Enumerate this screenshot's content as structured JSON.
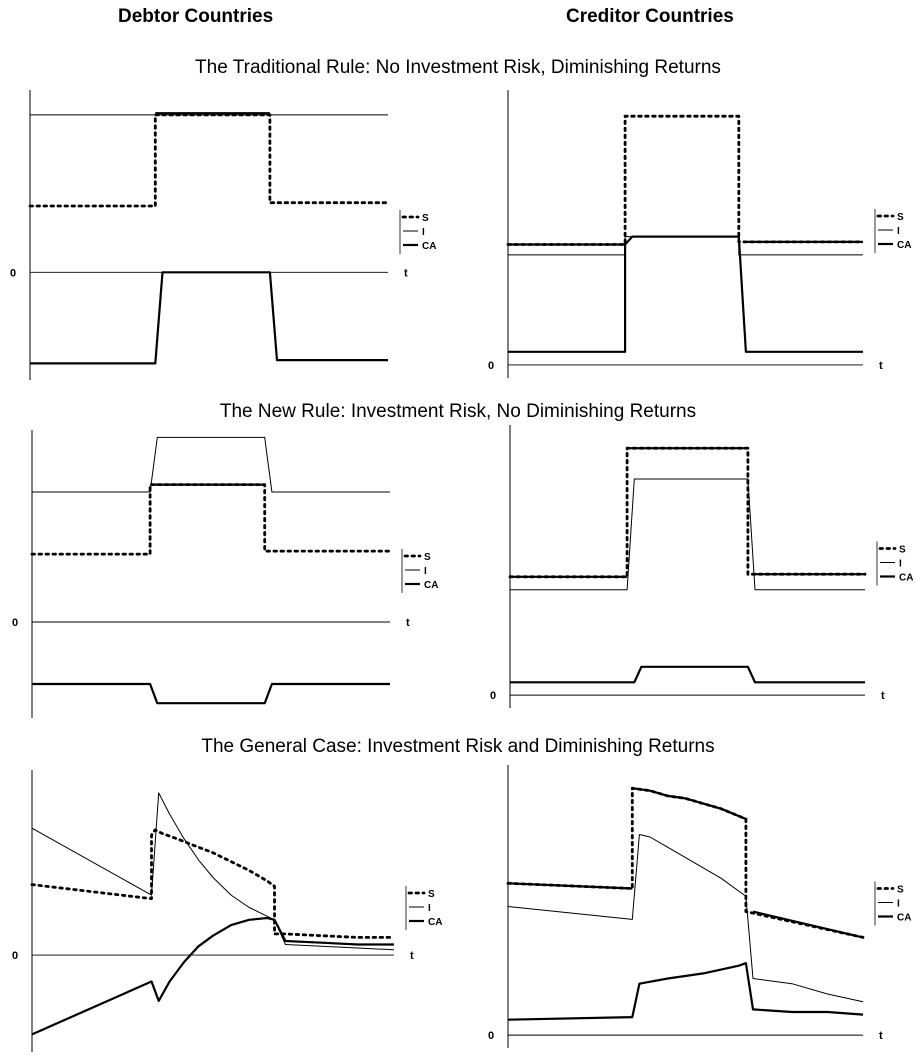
{
  "figure": {
    "col_titles": [
      "Debtor Countries",
      "Creditor Countries"
    ],
    "row_titles": [
      "The Traditional Rule:  No Investment Risk, Diminishing Returns",
      "The New Rule:  Investment Risk, No Diminishing Returns",
      "The General Case:  Investment Risk and Diminishing Returns"
    ]
  },
  "chart_data": [
    {
      "type": "line",
      "title": "",
      "xlabel": "t",
      "ylabel": "",
      "zero_label": "0",
      "x_tick_labels": [],
      "y_tick_labels": [],
      "legend": [
        "S",
        "I",
        "CA"
      ],
      "legend_position": "right",
      "ylim": [
        -0.65,
        1.1
      ],
      "grid": false,
      "zero_line": true,
      "series": [
        {
          "name": "S",
          "style": "dotted",
          "x": [
            0,
            0.35,
            0.35,
            0.67,
            0.67,
            1.0
          ],
          "y": [
            0.4,
            0.4,
            0.95,
            0.95,
            0.42,
            0.42
          ]
        },
        {
          "name": "I",
          "style": "thin",
          "x": [
            0,
            1.0
          ],
          "y": [
            0.95,
            0.95
          ]
        },
        {
          "name": "CA",
          "style": "thick",
          "x": [
            0,
            0.35,
            0.37,
            0.67,
            0.69,
            1.0
          ],
          "y": [
            -0.55,
            -0.55,
            0.0,
            0.0,
            -0.53,
            -0.53
          ]
        },
        {
          "name": "",
          "style": "thick",
          "x": [
            0.35,
            0.67
          ],
          "y": [
            0.96,
            0.96
          ]
        }
      ]
    },
    {
      "type": "line",
      "title": "",
      "xlabel": "t",
      "ylabel": "",
      "zero_label": "0",
      "x_tick_labels": [],
      "y_tick_labels": [],
      "legend": [
        "S",
        "I",
        "CA"
      ],
      "legend_position": "right",
      "ylim": [
        -0.05,
        1.05
      ],
      "grid": false,
      "zero_line": true,
      "series": [
        {
          "name": "S",
          "style": "dotted",
          "x": [
            0,
            0.33,
            0.33,
            0.65,
            0.65,
            1.0
          ],
          "y": [
            0.46,
            0.46,
            0.95,
            0.95,
            0.47,
            0.47
          ]
        },
        {
          "name": "I",
          "style": "thin",
          "x": [
            0,
            0.33,
            0.33,
            0.65,
            0.65,
            1.0
          ],
          "y": [
            0.42,
            0.42,
            0.49,
            0.49,
            0.42,
            0.42
          ]
        },
        {
          "name": "CA",
          "style": "thick",
          "x": [
            0,
            0.33,
            0.33,
            0.35,
            0.65,
            0.67,
            1.0
          ],
          "y": [
            0.05,
            0.05,
            0.46,
            0.49,
            0.49,
            0.05,
            0.05
          ]
        },
        {
          "name": "",
          "style": "thick",
          "x": [
            0,
            0.33
          ],
          "y": [
            0.46,
            0.46
          ]
        },
        {
          "name": "",
          "style": "thick",
          "x": [
            0.67,
            1.0
          ],
          "y": [
            0.47,
            0.47
          ]
        }
      ]
    },
    {
      "type": "line",
      "title": "",
      "xlabel": "t",
      "ylabel": "",
      "zero_label": "0",
      "x_tick_labels": [],
      "y_tick_labels": [],
      "legend": [
        "S",
        "I",
        "CA"
      ],
      "legend_position": "right",
      "ylim": [
        -0.65,
        1.3
      ],
      "grid": false,
      "zero_line": true,
      "series": [
        {
          "name": "S",
          "style": "dotted",
          "x": [
            0,
            0.33,
            0.33,
            0.65,
            0.65,
            1.0
          ],
          "y": [
            0.46,
            0.46,
            0.93,
            0.93,
            0.48,
            0.48
          ]
        },
        {
          "name": "I",
          "style": "thin",
          "x": [
            0,
            0.33,
            0.35,
            0.65,
            0.67,
            1.0
          ],
          "y": [
            0.88,
            0.88,
            1.25,
            1.25,
            0.88,
            0.88
          ]
        },
        {
          "name": "CA",
          "style": "thick",
          "x": [
            0,
            0.33,
            0.35,
            0.65,
            0.67,
            1.0
          ],
          "y": [
            -0.42,
            -0.42,
            -0.55,
            -0.55,
            -0.42,
            -0.42
          ]
        },
        {
          "name": "",
          "style": "thick",
          "x": [
            0.33,
            0.65
          ],
          "y": [
            0.93,
            0.93
          ]
        }
      ]
    },
    {
      "type": "line",
      "title": "",
      "xlabel": "t",
      "ylabel": "",
      "zero_label": "0",
      "x_tick_labels": [],
      "y_tick_labels": [],
      "legend": [
        "S",
        "I",
        "CA"
      ],
      "legend_position": "right",
      "ylim": [
        -0.05,
        1.05
      ],
      "grid": false,
      "zero_line": true,
      "series": [
        {
          "name": "S",
          "style": "dotted",
          "x": [
            0,
            0.33,
            0.33,
            0.67,
            0.67,
            1.0
          ],
          "y": [
            0.46,
            0.46,
            0.96,
            0.96,
            0.47,
            0.47
          ]
        },
        {
          "name": "I",
          "style": "thin",
          "x": [
            0,
            0.33,
            0.35,
            0.67,
            0.69,
            1.0
          ],
          "y": [
            0.41,
            0.41,
            0.84,
            0.84,
            0.41,
            0.41
          ]
        },
        {
          "name": "CA",
          "style": "thick",
          "x": [
            0,
            0.35,
            0.37,
            0.67,
            0.69,
            1.0
          ],
          "y": [
            0.05,
            0.05,
            0.11,
            0.11,
            0.05,
            0.05
          ]
        },
        {
          "name": "",
          "style": "thick",
          "x": [
            0,
            0.33
          ],
          "y": [
            0.46,
            0.46
          ]
        },
        {
          "name": "",
          "style": "thick",
          "x": [
            0.33,
            0.67
          ],
          "y": [
            0.96,
            0.96
          ]
        },
        {
          "name": "",
          "style": "thick",
          "x": [
            0.69,
            1.0
          ],
          "y": [
            0.47,
            0.47
          ]
        }
      ]
    },
    {
      "type": "line",
      "title": "",
      "xlabel": "t",
      "ylabel": "",
      "zero_label": "0",
      "x_tick_labels": [],
      "y_tick_labels": [],
      "legend": [
        "S",
        "I",
        "CA"
      ],
      "legend_position": "right",
      "ylim": [
        -0.55,
        1.05
      ],
      "grid": false,
      "zero_line": true,
      "series": [
        {
          "name": "S",
          "style": "dotted",
          "x": [
            0,
            0.33,
            0.33,
            0.34,
            0.36,
            0.4,
            0.45,
            0.5,
            0.55,
            0.6,
            0.65,
            0.67,
            0.67,
            0.7,
            0.8,
            0.9,
            1.0
          ],
          "y": [
            0.4,
            0.32,
            0.68,
            0.71,
            0.69,
            0.66,
            0.62,
            0.58,
            0.53,
            0.48,
            0.42,
            0.39,
            0.12,
            0.12,
            0.11,
            0.1,
            0.1
          ]
        },
        {
          "name": "I",
          "style": "thin",
          "x": [
            0,
            0.33,
            0.35,
            0.38,
            0.42,
            0.46,
            0.5,
            0.55,
            0.6,
            0.65,
            0.67,
            0.7,
            0.8,
            0.9,
            1.0
          ],
          "y": [
            0.72,
            0.34,
            0.92,
            0.8,
            0.66,
            0.54,
            0.44,
            0.34,
            0.27,
            0.22,
            0.2,
            0.06,
            0.05,
            0.04,
            0.03
          ]
        },
        {
          "name": "CA",
          "style": "thick",
          "x": [
            0,
            0.33,
            0.35,
            0.38,
            0.42,
            0.46,
            0.5,
            0.55,
            0.6,
            0.65,
            0.67,
            0.7,
            0.8,
            0.9,
            1.0
          ],
          "y": [
            -0.45,
            -0.15,
            -0.26,
            -0.15,
            -0.04,
            0.05,
            0.11,
            0.17,
            0.2,
            0.21,
            0.2,
            0.08,
            0.07,
            0.06,
            0.06
          ]
        }
      ]
    },
    {
      "type": "line",
      "title": "",
      "xlabel": "t",
      "ylabel": "",
      "zero_label": "0",
      "x_tick_labels": [],
      "y_tick_labels": [],
      "legend": [
        "S",
        "I",
        "CA"
      ],
      "legend_position": "right",
      "ylim": [
        -0.05,
        1.05
      ],
      "grid": false,
      "zero_line": true,
      "series": [
        {
          "name": "S",
          "style": "dotted",
          "x": [
            0,
            0.35,
            0.35,
            0.4,
            0.45,
            0.5,
            0.55,
            0.6,
            0.67,
            0.67,
            1.0
          ],
          "y": [
            0.59,
            0.57,
            0.96,
            0.95,
            0.93,
            0.92,
            0.9,
            0.88,
            0.84,
            0.48,
            0.38
          ]
        },
        {
          "name": "I",
          "style": "thin",
          "x": [
            0,
            0.35,
            0.37,
            0.4,
            0.45,
            0.5,
            0.55,
            0.6,
            0.65,
            0.67,
            0.69,
            0.8,
            0.9,
            1.0
          ],
          "y": [
            0.5,
            0.45,
            0.78,
            0.77,
            0.73,
            0.69,
            0.65,
            0.61,
            0.56,
            0.54,
            0.22,
            0.2,
            0.16,
            0.13
          ]
        },
        {
          "name": "CA",
          "style": "thick",
          "x": [
            0,
            0.35,
            0.37,
            0.45,
            0.55,
            0.65,
            0.67,
            0.69,
            0.8,
            0.9,
            1.0
          ],
          "y": [
            0.06,
            0.07,
            0.2,
            0.22,
            0.24,
            0.27,
            0.28,
            0.1,
            0.09,
            0.09,
            0.08
          ]
        },
        {
          "name": "",
          "style": "thick",
          "x": [
            0,
            0.35
          ],
          "y": [
            0.59,
            0.57
          ]
        },
        {
          "name": "",
          "style": "thick",
          "x": [
            0.35,
            0.4,
            0.45,
            0.5,
            0.55,
            0.6,
            0.67
          ],
          "y": [
            0.96,
            0.95,
            0.93,
            0.92,
            0.9,
            0.88,
            0.84
          ]
        },
        {
          "name": "",
          "style": "thick",
          "x": [
            0.69,
            1.0
          ],
          "y": [
            0.48,
            0.38
          ]
        }
      ]
    }
  ]
}
